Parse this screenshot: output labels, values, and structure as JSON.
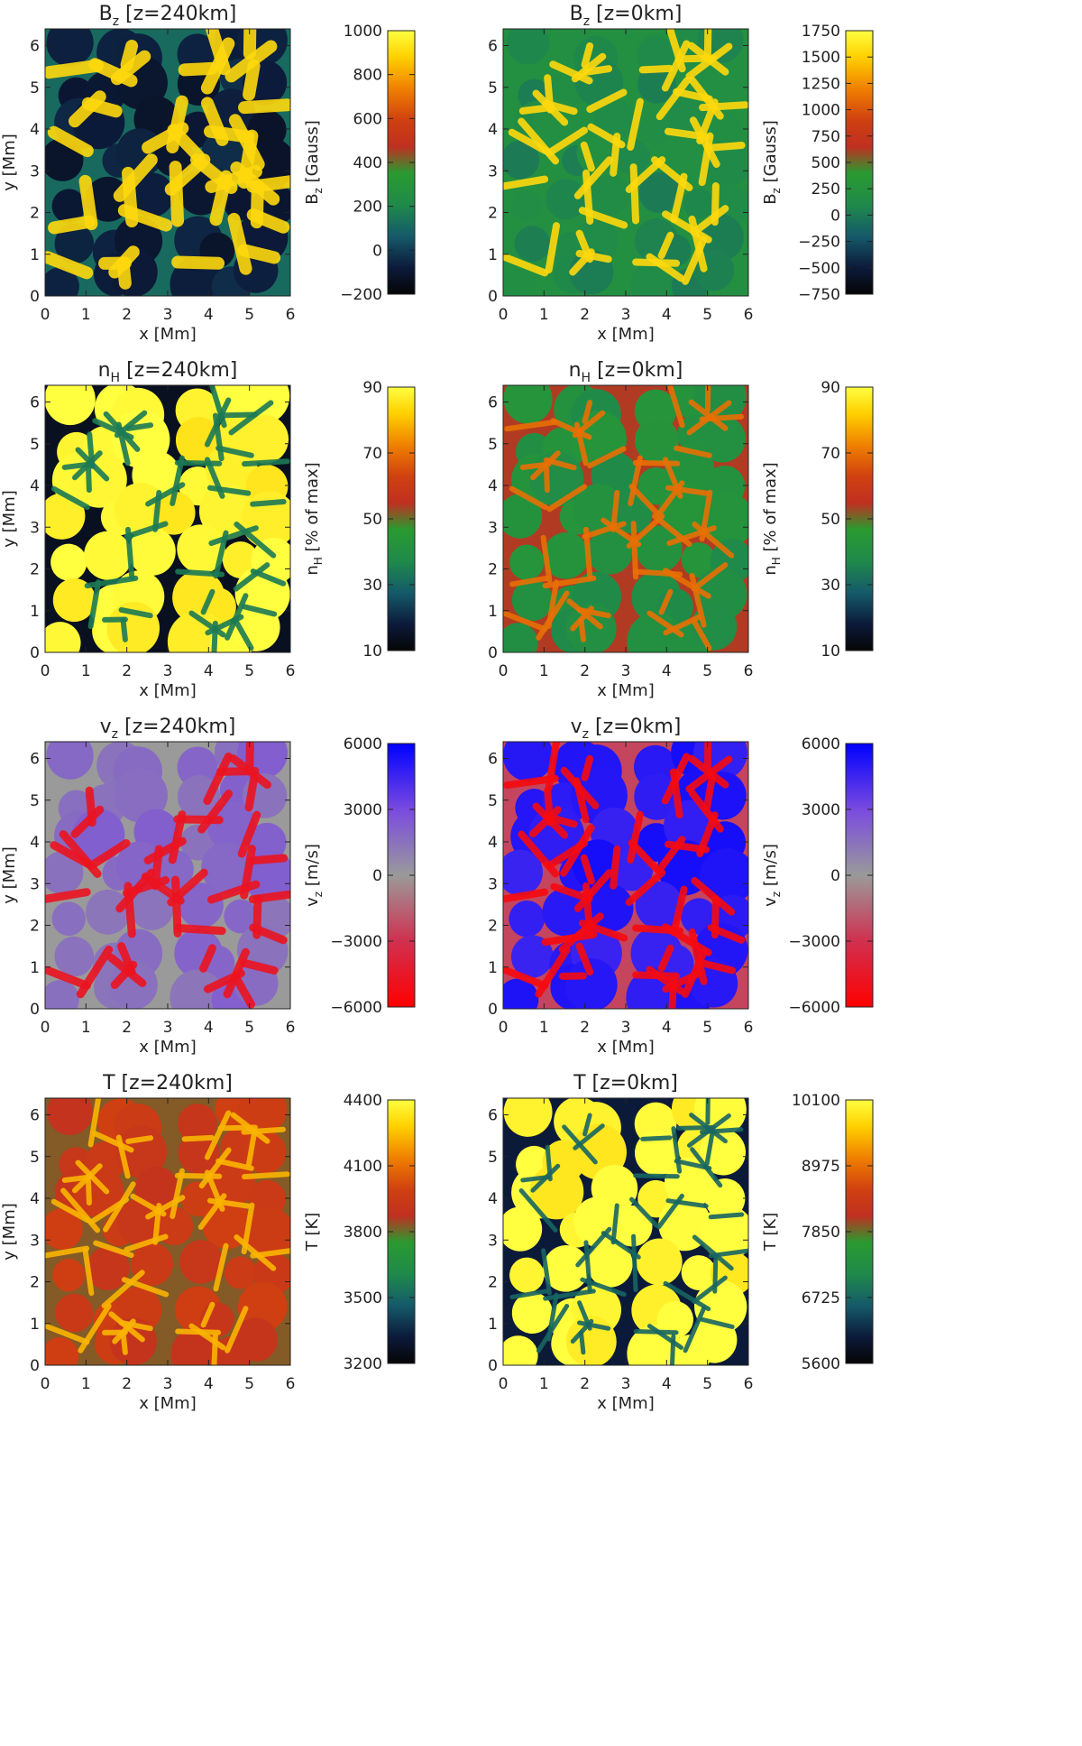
{
  "panels": [
    {
      "title_main": "B",
      "title_sub": "z",
      "title_rest": " [z=240km]",
      "xlabel": "x [Mm]",
      "ylabel": "y [Mm]",
      "xticks": [
        "0",
        "1",
        "2",
        "3",
        "4",
        "5",
        "6"
      ],
      "yticks": [
        "0",
        "1",
        "2",
        "3",
        "4",
        "5",
        "6"
      ],
      "colorbar_label_main": "B",
      "colorbar_label_sub": "z",
      "colorbar_label_rest": " [Gauss]",
      "colorbar_ticks": [
        "−200",
        "0",
        "200",
        "400",
        "600",
        "800",
        "1000"
      ],
      "colorbar_values": [
        -200,
        0,
        200,
        400,
        600,
        800,
        1000
      ],
      "colorbar_range": [
        -200,
        1000
      ],
      "colormap": "temperature",
      "pattern": "network"
    },
    {
      "title_main": "B",
      "title_sub": "z",
      "title_rest": " [z=0km]",
      "xlabel": "x [Mm]",
      "ylabel": "",
      "xticks": [
        "0",
        "1",
        "2",
        "3",
        "4",
        "5",
        "6"
      ],
      "yticks": [
        "0",
        "1",
        "2",
        "3",
        "4",
        "5",
        "6"
      ],
      "colorbar_label_main": "B",
      "colorbar_label_sub": "z",
      "colorbar_label_rest": " [Gauss]",
      "colorbar_ticks": [
        "−750",
        "−500",
        "−250",
        "0",
        "250",
        "500",
        "750",
        "1000",
        "1250",
        "1500",
        "1750"
      ],
      "colorbar_values": [
        -750,
        -500,
        -250,
        0,
        250,
        500,
        750,
        1000,
        1250,
        1500,
        1750
      ],
      "colorbar_range": [
        -750,
        1750
      ],
      "colormap": "temperature",
      "pattern": "network-thin"
    },
    {
      "title_main": "n",
      "title_sub": "H",
      "title_rest": " [z=240km]",
      "xlabel": "x [Mm]",
      "ylabel": "y [Mm]",
      "xticks": [
        "0",
        "1",
        "2",
        "3",
        "4",
        "5",
        "6"
      ],
      "yticks": [
        "0",
        "1",
        "2",
        "3",
        "4",
        "5",
        "6"
      ],
      "colorbar_label_main": "n",
      "colorbar_label_sub": "H",
      "colorbar_label_rest": " [% of max]",
      "colorbar_ticks": [
        "10",
        "30",
        "50",
        "70",
        "90"
      ],
      "colorbar_values": [
        10,
        30,
        50,
        70,
        90
      ],
      "colorbar_range": [
        10,
        90
      ],
      "colormap": "temperature",
      "pattern": "granules-bright"
    },
    {
      "title_main": "n",
      "title_sub": "H",
      "title_rest": " [z=0km]",
      "xlabel": "x [Mm]",
      "ylabel": "",
      "xticks": [
        "0",
        "1",
        "2",
        "3",
        "4",
        "5",
        "6"
      ],
      "yticks": [
        "0",
        "1",
        "2",
        "3",
        "4",
        "5",
        "6"
      ],
      "colorbar_label_main": "n",
      "colorbar_label_sub": "H",
      "colorbar_label_rest": " [% of max]",
      "colorbar_ticks": [
        "10",
        "30",
        "50",
        "70",
        "90"
      ],
      "colorbar_values": [
        10,
        30,
        50,
        70,
        90
      ],
      "colorbar_range": [
        10,
        90
      ],
      "colormap": "temperature",
      "pattern": "granules-mixed"
    },
    {
      "title_main": "v",
      "title_sub": "z",
      "title_rest": " [z=240km]",
      "xlabel": "x [Mm]",
      "ylabel": "y [Mm]",
      "xticks": [
        "0",
        "1",
        "2",
        "3",
        "4",
        "5",
        "6"
      ],
      "yticks": [
        "0",
        "1",
        "2",
        "3",
        "4",
        "5",
        "6"
      ],
      "colorbar_label_main": "v",
      "colorbar_label_sub": "z",
      "colorbar_label_rest": " [m/s]",
      "colorbar_ticks": [
        "−6000",
        "−3000",
        "0",
        "3000",
        "6000"
      ],
      "colorbar_values": [
        -6000,
        -3000,
        0,
        3000,
        6000
      ],
      "colorbar_range": [
        -6000,
        6000
      ],
      "colormap": "velocity",
      "pattern": "velocity-weak"
    },
    {
      "title_main": "v",
      "title_sub": "z",
      "title_rest": " [z=0km]",
      "xlabel": "x [Mm]",
      "ylabel": "",
      "xticks": [
        "0",
        "1",
        "2",
        "3",
        "4",
        "5",
        "6"
      ],
      "yticks": [
        "0",
        "1",
        "2",
        "3",
        "4",
        "5",
        "6"
      ],
      "colorbar_label_main": "v",
      "colorbar_label_sub": "z",
      "colorbar_label_rest": " [m/s]",
      "colorbar_ticks": [
        "−6000",
        "−3000",
        "0",
        "3000",
        "6000"
      ],
      "colorbar_values": [
        -6000,
        -3000,
        0,
        3000,
        6000
      ],
      "colorbar_range": [
        -6000,
        6000
      ],
      "colormap": "velocity",
      "pattern": "velocity-strong"
    },
    {
      "title_main": "T",
      "title_sub": "",
      "title_rest": " [z=240km]",
      "xlabel": "x [Mm]",
      "ylabel": "y [Mm]",
      "xticks": [
        "0",
        "1",
        "2",
        "3",
        "4",
        "5",
        "6"
      ],
      "yticks": [
        "0",
        "1",
        "2",
        "3",
        "4",
        "5",
        "6"
      ],
      "colorbar_label_main": "T",
      "colorbar_label_sub": "",
      "colorbar_label_rest": " [K]",
      "colorbar_ticks": [
        "3200",
        "3500",
        "3800",
        "4100",
        "4400"
      ],
      "colorbar_values": [
        3200,
        3500,
        3800,
        4100,
        4400
      ],
      "colorbar_range": [
        3200,
        4400
      ],
      "colormap": "temperature",
      "pattern": "temp-upper"
    },
    {
      "title_main": "T",
      "title_sub": "",
      "title_rest": " [z=0km]",
      "xlabel": "x [Mm]",
      "ylabel": "",
      "xticks": [
        "0",
        "1",
        "2",
        "3",
        "4",
        "5",
        "6"
      ],
      "yticks": [
        "0",
        "1",
        "2",
        "3",
        "4",
        "5",
        "6"
      ],
      "colorbar_label_main": "T",
      "colorbar_label_sub": "",
      "colorbar_label_rest": " [K]",
      "colorbar_ticks": [
        "5600",
        "6725",
        "7850",
        "8975",
        "10100"
      ],
      "colorbar_values": [
        5600,
        6725,
        7850,
        8975,
        10100
      ],
      "colorbar_range": [
        5600,
        10100
      ],
      "colormap": "temperature",
      "pattern": "granules-temp"
    }
  ],
  "chart_data": [
    {
      "type": "heatmap",
      "title": "B_z [z=240km]",
      "xlabel": "x [Mm]",
      "ylabel": "y [Mm]",
      "xlim": [
        0,
        6
      ],
      "ylim": [
        0,
        6.4
      ],
      "colorbar_label": "B_z [Gauss]",
      "crange": [
        -200,
        1000
      ]
    },
    {
      "type": "heatmap",
      "title": "B_z [z=0km]",
      "xlabel": "x [Mm]",
      "ylabel": "",
      "xlim": [
        0,
        6
      ],
      "ylim": [
        0,
        6.4
      ],
      "colorbar_label": "B_z [Gauss]",
      "crange": [
        -750,
        1750
      ]
    },
    {
      "type": "heatmap",
      "title": "n_H [z=240km]",
      "xlabel": "x [Mm]",
      "ylabel": "y [Mm]",
      "xlim": [
        0,
        6
      ],
      "ylim": [
        0,
        6.4
      ],
      "colorbar_label": "n_H [% of max]",
      "crange": [
        10,
        90
      ]
    },
    {
      "type": "heatmap",
      "title": "n_H [z=0km]",
      "xlabel": "x [Mm]",
      "ylabel": "",
      "xlim": [
        0,
        6
      ],
      "ylim": [
        0,
        6.4
      ],
      "colorbar_label": "n_H [% of max]",
      "crange": [
        10,
        90
      ]
    },
    {
      "type": "heatmap",
      "title": "v_z [z=240km]",
      "xlabel": "x [Mm]",
      "ylabel": "y [Mm]",
      "xlim": [
        0,
        6
      ],
      "ylim": [
        0,
        6.4
      ],
      "colorbar_label": "v_z [m/s]",
      "crange": [
        -6000,
        6000
      ]
    },
    {
      "type": "heatmap",
      "title": "v_z [z=0km]",
      "xlabel": "x [Mm]",
      "ylabel": "",
      "xlim": [
        0,
        6
      ],
      "ylim": [
        0,
        6.4
      ],
      "colorbar_label": "v_z [m/s]",
      "crange": [
        -6000,
        6000
      ]
    },
    {
      "type": "heatmap",
      "title": "T [z=240km]",
      "xlabel": "x [Mm]",
      "ylabel": "y [Mm]",
      "xlim": [
        0,
        6
      ],
      "ylim": [
        0,
        6.4
      ],
      "colorbar_label": "T [K]",
      "crange": [
        3200,
        4400
      ]
    },
    {
      "type": "heatmap",
      "title": "T [z=0km]",
      "xlabel": "x [Mm]",
      "ylabel": "",
      "xlim": [
        0,
        6
      ],
      "ylim": [
        0,
        6.4
      ],
      "colorbar_label": "T [K]",
      "crange": [
        5600,
        10100
      ]
    }
  ]
}
